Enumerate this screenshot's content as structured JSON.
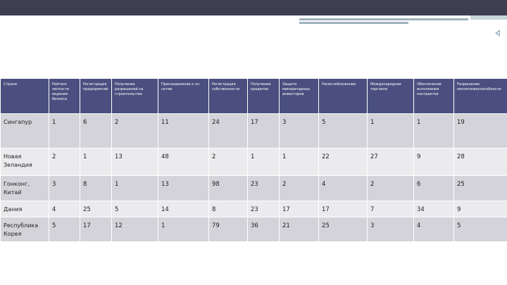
{
  "table": {
    "headers": [
      "Страна",
      "Рейтинг легкости ведения бизнеса",
      "Регистрация предприятий",
      "Получение разрешений на строительство",
      "Присоединение к эл. сетям",
      "Регистрация собственности",
      "Получение кредитов",
      "Защита миноритарных инвесторов",
      "Налогообложение",
      "Международная торговля",
      "Обеспечение исполнения контрактов",
      "Разрешение неплатежеспособности"
    ],
    "rows": [
      [
        "Сингапур",
        "1",
        "6",
        "2",
        "11",
        "24",
        "17",
        "3",
        "5",
        "1",
        "1",
        "19"
      ],
      [
        "Новая Зеландия",
        "2",
        "1",
        "13",
        "48",
        "2",
        "1",
        "1",
        "22",
        "27",
        "9",
        "28"
      ],
      [
        "Гонконг, Китай",
        "3",
        "8",
        "1",
        "13",
        "98",
        "23",
        "2",
        "4",
        "2",
        "6",
        "25"
      ],
      [
        "Дания",
        "4",
        "25",
        "5",
        "14",
        "8",
        "23",
        "17",
        "17",
        "7",
        "34",
        "9"
      ],
      [
        "Республика Корея",
        "5",
        "17",
        "12",
        "1",
        "79",
        "36",
        "21",
        "25",
        "3",
        "4",
        "5"
      ]
    ]
  }
}
